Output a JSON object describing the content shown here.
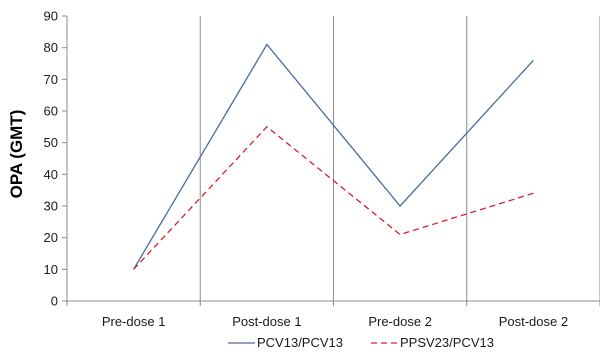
{
  "chart_data": {
    "type": "line",
    "categories": [
      "Pre-dose 1",
      "Post-dose 1",
      "Pre-dose 2",
      "Post-dose 2"
    ],
    "series": [
      {
        "name": "PCV13/PCV13",
        "values": [
          10,
          81,
          30,
          76
        ],
        "color": "#4a6b9a",
        "dash": "solid"
      },
      {
        "name": "PPSV23/PCV13",
        "values": [
          10,
          55,
          21,
          34
        ],
        "color": "#d6202a",
        "dash": "dashed"
      }
    ],
    "title": "",
    "xlabel": "",
    "ylabel": "OPA (GMT)",
    "ylim": [
      0,
      90
    ],
    "yticks": [
      0,
      10,
      20,
      30,
      40,
      50,
      60,
      70,
      80,
      90
    ],
    "grid": {
      "horizontal": false,
      "vertical": true
    },
    "legend": "bottom"
  }
}
